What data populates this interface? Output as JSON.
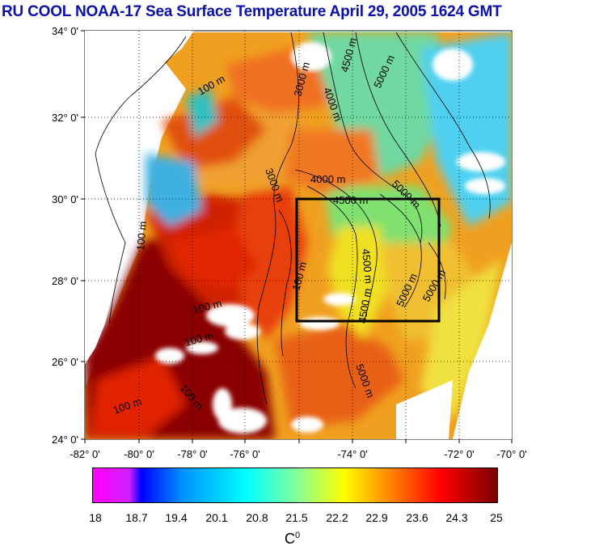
{
  "title": "RU COOL  NOAA-17 Sea Surface Temperature April 29, 2005 1624 GMT",
  "lat_labels": [
    "34° 0'",
    "32° 0'",
    "30° 0'",
    "28° 0'",
    "26° 0'",
    "24° 0'"
  ],
  "lon_labels": [
    "-82° 0'",
    "-80° 0'",
    "-78° 0'",
    "-76° 0'",
    "-74° 0'",
    "-72° 0'",
    "-70° 0'"
  ],
  "contour_labels": [
    "100 m",
    "3000 m",
    "4000 m",
    "4500 m",
    "5000 m",
    "4000 m",
    "3000 m",
    "4500 m",
    "5000 m",
    "100 m",
    "4500 m",
    "5000 m",
    "4500 m",
    "5000 m",
    "100 m",
    "100 m",
    "5000 m",
    "100 m",
    "100 m",
    "100 m"
  ],
  "colorbar": {
    "ticks": [
      "18",
      "18.7",
      "19.4",
      "20.1",
      "20.8",
      "21.5",
      "22.2",
      "22.9",
      "23.6",
      "24.3",
      "25"
    ],
    "unit": "C",
    "unit_sup": "0",
    "colors": [
      "#ff00ff",
      "#0000ff",
      "#00ffff",
      "#ffff00",
      "#ff8000",
      "#ff0000",
      "#7a0000"
    ]
  },
  "map_colors": {
    "land": "#ffffff",
    "warm": "#b80000",
    "hot": "#e03000",
    "orange": "#f08a10",
    "yellow": "#f0d820",
    "green": "#80e080",
    "cyan": "#40d8f0",
    "blue": "#2060ff"
  }
}
